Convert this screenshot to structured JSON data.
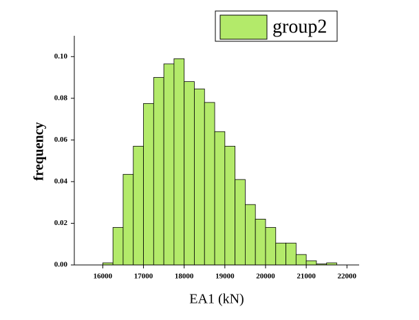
{
  "chart_data": {
    "type": "histogram",
    "xlabel": "EA1 (kN)",
    "ylabel": "frequency",
    "bins": [
      16000,
      16250,
      16500,
      16750,
      17000,
      17250,
      17500,
      17750,
      18000,
      18250,
      18500,
      18750,
      19000,
      19250,
      19500,
      19750,
      20000,
      20250,
      20500,
      20750,
      21000,
      21250,
      21500,
      21750
    ],
    "series": [
      {
        "name": "group2",
        "color": "#b3ea6a",
        "values": [
          0.001,
          0.018,
          0.0435,
          0.057,
          0.0775,
          0.09,
          0.0965,
          0.099,
          0.088,
          0.0845,
          0.078,
          0.064,
          0.057,
          0.041,
          0.029,
          0.022,
          0.018,
          0.0105,
          0.0105,
          0.005,
          0.002,
          0.0005,
          0.001
        ]
      }
    ],
    "xlim": [
      15300,
      22300
    ],
    "ylim": [
      0,
      0.11
    ],
    "xticks": [
      16000,
      17000,
      18000,
      19000,
      20000,
      21000,
      22000
    ],
    "yticks": [
      {
        "value": 0,
        "label": "0.00"
      },
      {
        "value": 0.02,
        "label": "0.02"
      },
      {
        "value": 0.04,
        "label": "0.04"
      },
      {
        "value": 0.06,
        "label": "0.06"
      },
      {
        "value": 0.08,
        "label": "0.08"
      },
      {
        "value": 0.1,
        "label": "0.10"
      }
    ],
    "legend": "upper right"
  }
}
